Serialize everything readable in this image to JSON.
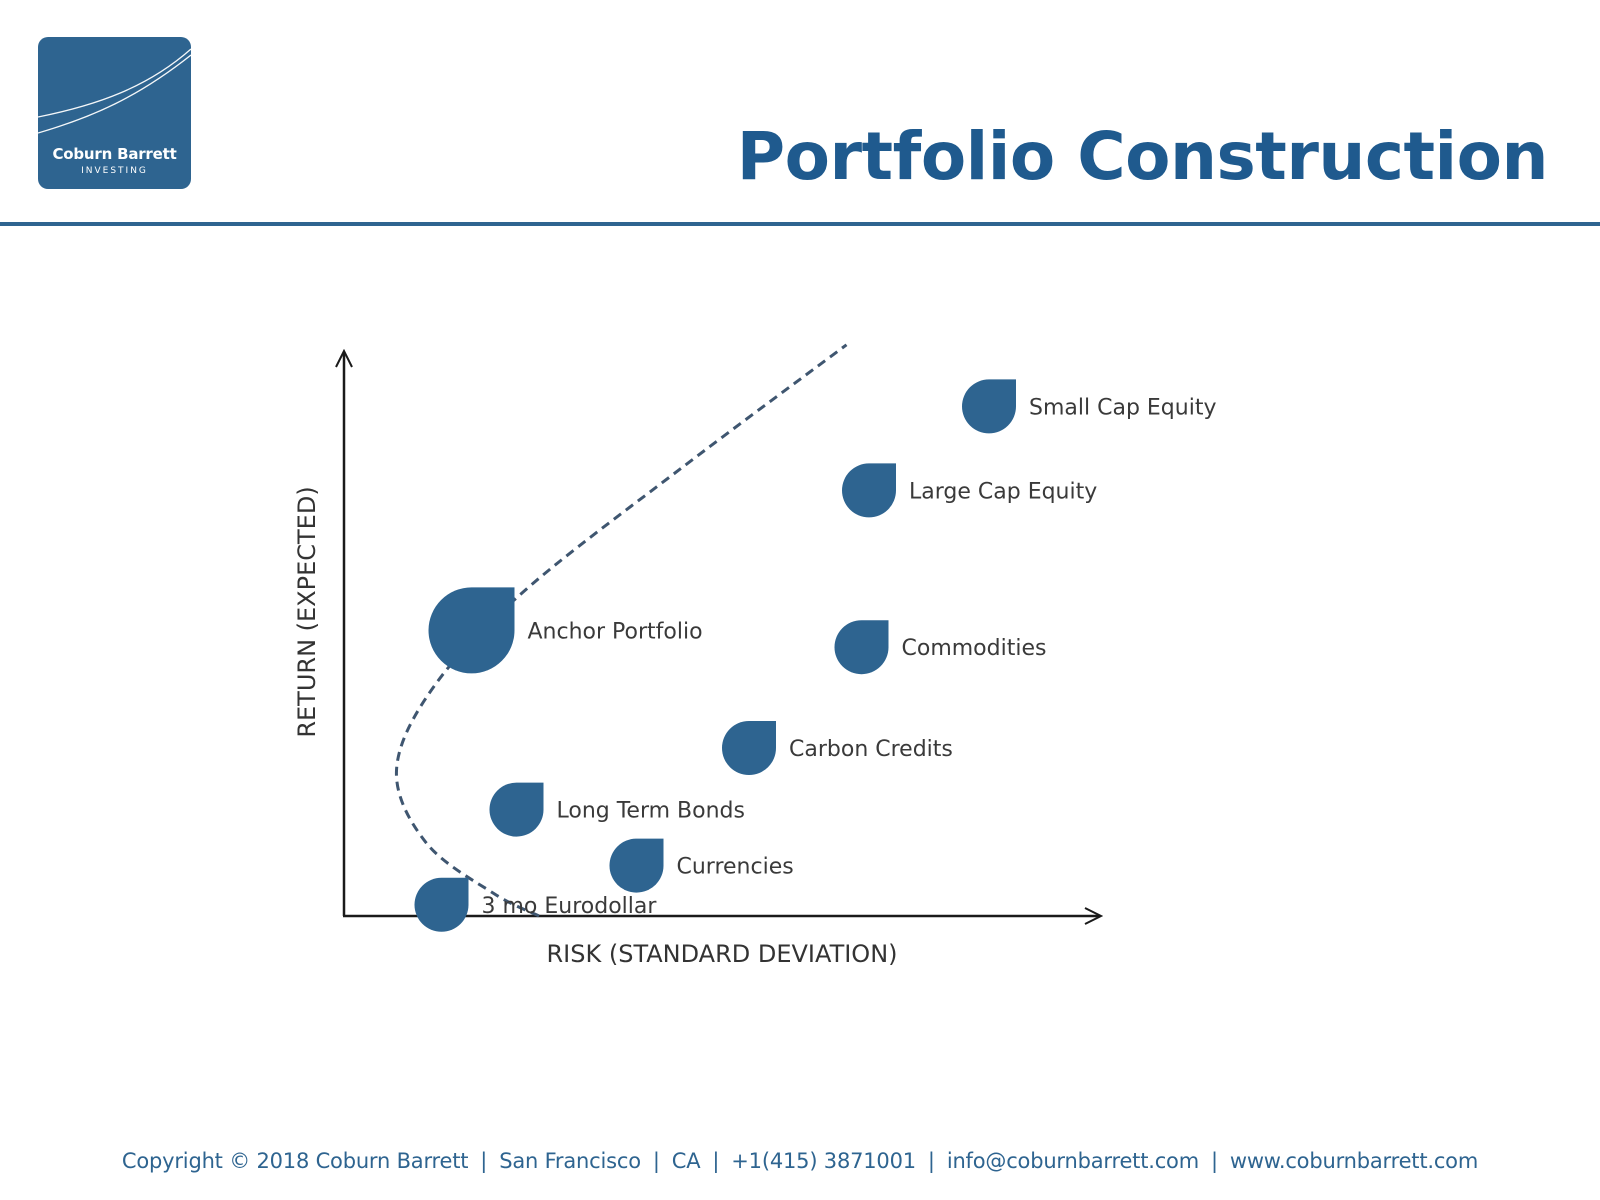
{
  "brand": {
    "name": "Coburn Barrett",
    "tagline": "INVESTING"
  },
  "colors": {
    "brand_blue": "#2e6490",
    "title_blue": "#1f5a8e",
    "frontier": "#3f5670",
    "label_text": "#3a3a3a",
    "axis": "#1a1a1a"
  },
  "header": {
    "title": "Portfolio Construction"
  },
  "chart_data": {
    "type": "scatter",
    "xlabel": "RISK (STANDARD DEVIATION)",
    "ylabel": "RETURN (EXPECTED)",
    "axis_ticks": false,
    "grid": false,
    "legend": "none",
    "marker_shape": "teardrop",
    "points": [
      {
        "label": "Small Cap Equity",
        "risk": 86,
        "return": 91,
        "size": "small"
      },
      {
        "label": "Large Cap Equity",
        "risk": 70,
        "return": 76,
        "size": "small"
      },
      {
        "label": "Commodities",
        "risk": 69,
        "return": 48,
        "size": "small"
      },
      {
        "label": "Anchor Portfolio",
        "risk": 17,
        "return": 51,
        "size": "large"
      },
      {
        "label": "Carbon Credits",
        "risk": 54,
        "return": 30,
        "size": "small"
      },
      {
        "label": "Long Term Bonds",
        "risk": 23,
        "return": 19,
        "size": "small"
      },
      {
        "label": "Currencies",
        "risk": 39,
        "return": 9,
        "size": "small"
      },
      {
        "label": "3 mo Eurodollar",
        "risk": 13,
        "return": 2,
        "size": "small"
      }
    ],
    "frontier": {
      "style": "dashed",
      "points": [
        {
          "risk": 26,
          "return": 0
        },
        {
          "risk": 20,
          "return": 4
        },
        {
          "risk": 11,
          "return": 13
        },
        {
          "risk": 7,
          "return": 26
        },
        {
          "risk": 12,
          "return": 41
        },
        {
          "risk": 24,
          "return": 58
        },
        {
          "risk": 45,
          "return": 80
        },
        {
          "risk": 67,
          "return": 102
        }
      ]
    }
  },
  "footer": {
    "copyright": "Copyright © 2018 Coburn Barrett",
    "city": "San Francisco",
    "state": "CA",
    "phone": "+1(415) 3871001",
    "email": "info@coburnbarrett.com",
    "website": "www.coburnbarrett.com",
    "separator": "|"
  }
}
